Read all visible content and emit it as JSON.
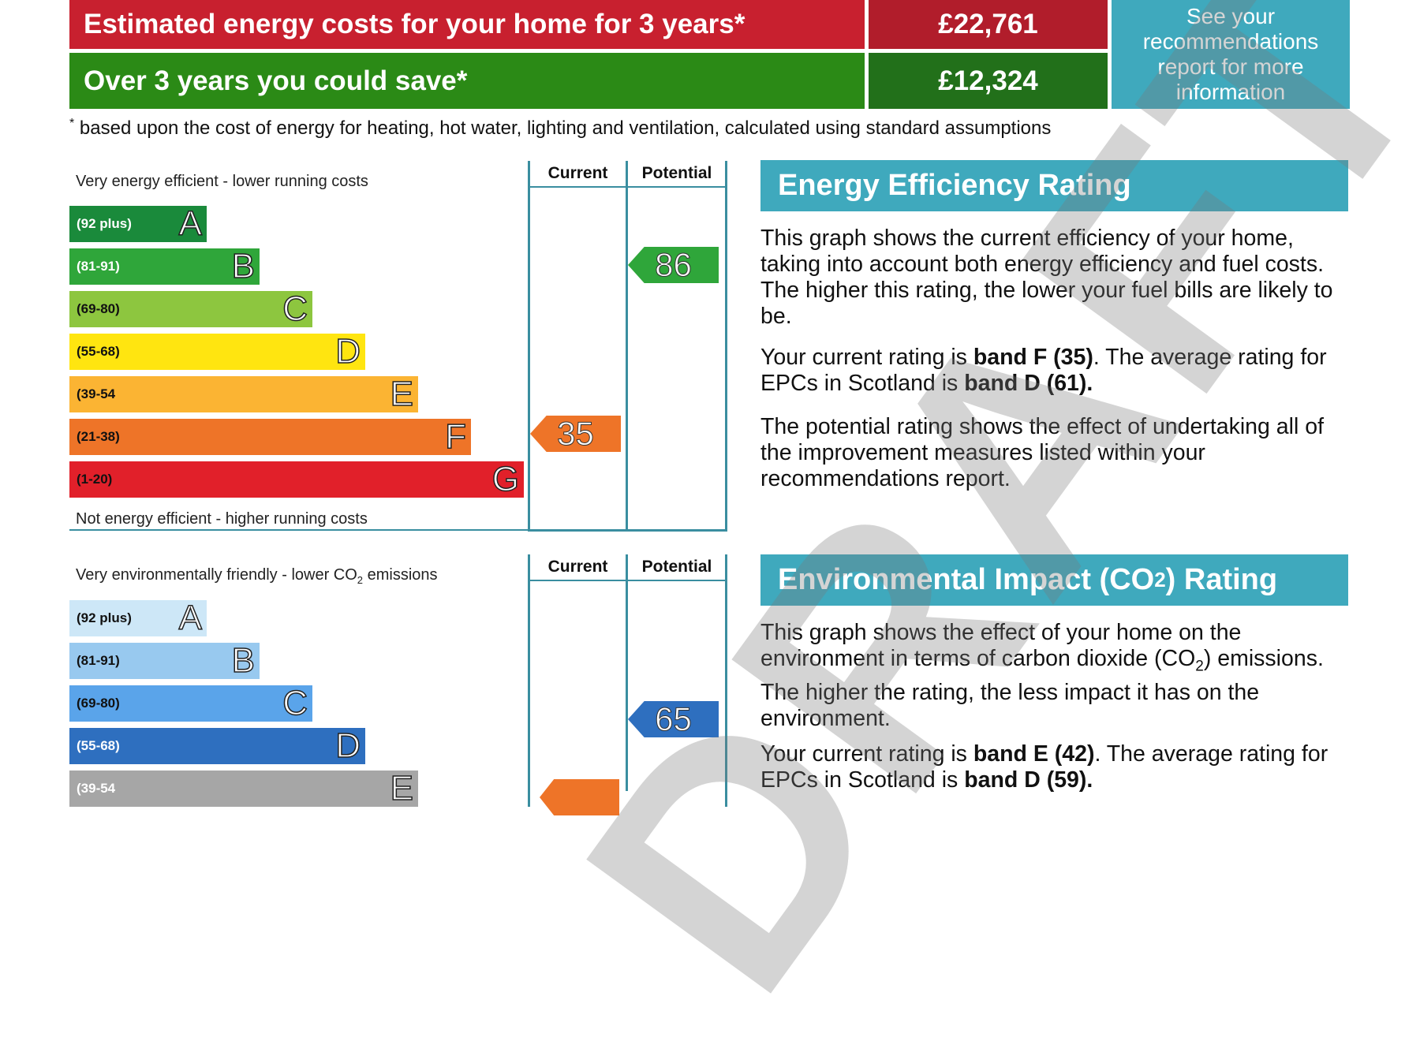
{
  "costs": {
    "estimated_label": "Estimated energy costs for your home for 3 years*",
    "estimated_value": "£22,761",
    "save_label": "Over 3 years you could save*",
    "save_value": "£12,324",
    "see_box": "See your recommendations report for more information",
    "footnote_mark": "*",
    "footnote": "based upon the cost of energy for heating, hot water, lighting and ventilation, calculated using standard assumptions"
  },
  "energy_chart": {
    "top_label": "Very energy efficient - lower running costs",
    "bottom_label": "Not energy efficient - higher running costs",
    "current_header": "Current",
    "potential_header": "Potential",
    "bands": [
      {
        "range": "(92 plus)",
        "letter": "A",
        "color": "#1a8a3b"
      },
      {
        "range": "(81-91)",
        "letter": "B",
        "color": "#2fa63a"
      },
      {
        "range": "(69-80)",
        "letter": "C",
        "color": "#8dc63f"
      },
      {
        "range": "(55-68)",
        "letter": "D",
        "color": "#ffe510"
      },
      {
        "range": "(39-54",
        "letter": "E",
        "color": "#fbb433"
      },
      {
        "range": "(21-38)",
        "letter": "F",
        "color": "#ee7428"
      },
      {
        "range": "(1-20)",
        "letter": "G",
        "color": "#e1202a"
      }
    ],
    "current_value": "35",
    "current_band_index": 5,
    "current_color": "#ee7428",
    "potential_value": "86",
    "potential_band_index": 1,
    "potential_color": "#2fa63a"
  },
  "env_chart": {
    "top_label_main": "Very environmentally friendly - lower CO",
    "top_label_sub": "2",
    "top_label_end": " emissions",
    "current_header": "Current",
    "potential_header": "Potential",
    "bands": [
      {
        "range": "(92 plus)",
        "letter": "A",
        "color": "#cde7f7"
      },
      {
        "range": "(81-91)",
        "letter": "B",
        "color": "#98c9ef"
      },
      {
        "range": "(69-80)",
        "letter": "C",
        "color": "#5aa4ea"
      },
      {
        "range": "(55-68)",
        "letter": "D",
        "color": "#2e6fbf"
      },
      {
        "range": "(39-54",
        "letter": "E",
        "color": "#a6a6a6"
      }
    ],
    "potential_value": "65",
    "potential_band_index": 3,
    "potential_color": "#2e6fbf"
  },
  "eer": {
    "title": "Energy Efficiency Rating",
    "p1": "This graph shows the current efficiency of your home, taking into account both energy efficiency and fuel costs. The higher this rating, the lower your fuel bills are likely to be.",
    "p2_a": "Your current rating is ",
    "p2_b": "band F (35)",
    "p2_c": ". The average rating for EPCs in Scotland is ",
    "p2_d": "band D (61).",
    "p3": "The potential rating shows the effect of undertaking all of the improvement measures listed within your recommendations report."
  },
  "eir": {
    "title_a": "Environmental Impact (CO",
    "title_sub": "2",
    "title_b": ") Rating",
    "p1_a": "This graph shows the effect of your home on the environment in terms of carbon dioxide (CO",
    "p1_sub": "2",
    "p1_b": ") emissions. The higher the rating, the less impact it has on the environment.",
    "p2_a": "Your current rating is ",
    "p2_b": "band E (42)",
    "p2_c": ". The average rating for EPCs in Scotland is ",
    "p2_d": "band D (59)."
  },
  "watermark": "DRAFT"
}
